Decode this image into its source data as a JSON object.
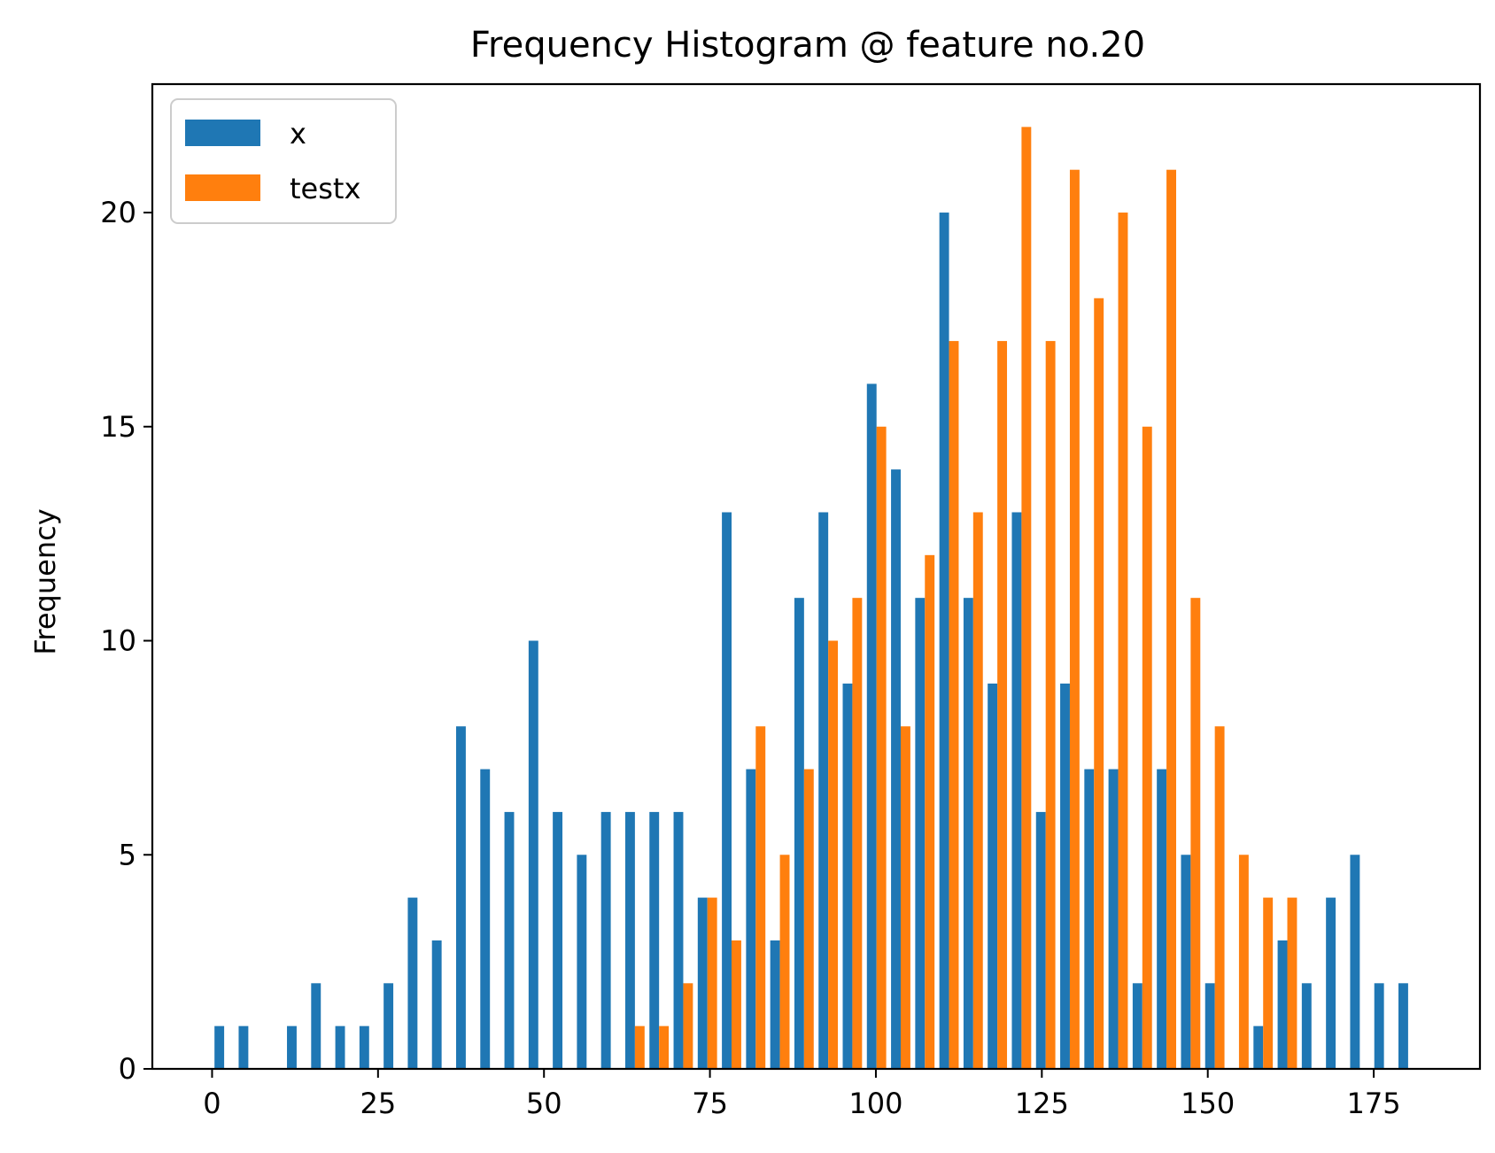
{
  "chart_data": {
    "type": "bar",
    "title": "Frequency Histogram @ feature no.20",
    "xlabel": "",
    "ylabel": "Frequency",
    "xlim": [
      -9,
      191
    ],
    "ylim": [
      0,
      23
    ],
    "x_ticks": [
      0,
      25,
      50,
      75,
      100,
      125,
      150,
      175
    ],
    "y_ticks": [
      0,
      5,
      10,
      15,
      20
    ],
    "grid": false,
    "legend_position": "upper-left",
    "bin_start": 0,
    "bin_width": 3.64,
    "series": [
      {
        "name": "x",
        "color": "#1f77b4",
        "values": [
          1,
          1,
          0,
          1,
          2,
          1,
          1,
          2,
          4,
          3,
          8,
          7,
          6,
          10,
          6,
          5,
          6,
          6,
          6,
          6,
          4,
          13,
          7,
          3,
          11,
          13,
          9,
          16,
          14,
          11,
          20,
          11,
          9,
          13,
          6,
          9,
          7,
          7,
          2,
          7,
          5,
          2,
          0,
          1,
          3,
          2,
          4,
          5,
          2,
          2
        ]
      },
      {
        "name": "testx",
        "color": "#ff7f0e",
        "values": [
          0,
          0,
          0,
          0,
          0,
          0,
          0,
          0,
          0,
          0,
          0,
          0,
          0,
          0,
          0,
          0,
          0,
          1,
          1,
          2,
          4,
          3,
          8,
          5,
          7,
          10,
          11,
          15,
          8,
          12,
          17,
          13,
          17,
          22,
          17,
          21,
          18,
          20,
          15,
          21,
          11,
          8,
          5,
          4,
          4,
          0,
          0,
          0,
          0,
          0
        ]
      }
    ]
  }
}
